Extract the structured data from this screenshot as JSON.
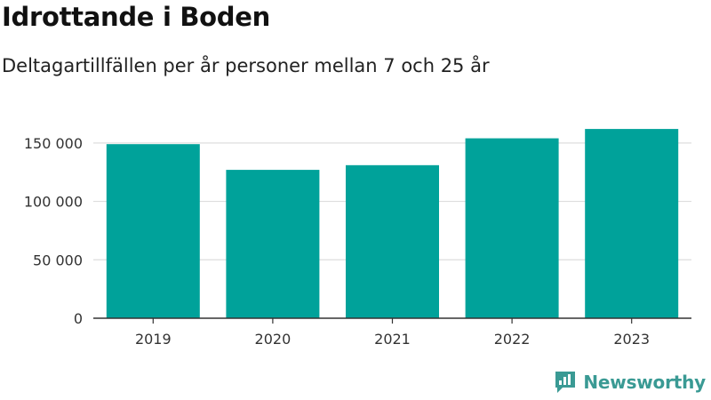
{
  "header": {
    "title": "Idrottande i Boden",
    "subtitle": "Deltagartillfällen per år personer mellan 7 och 25 år"
  },
  "brand": {
    "name": "Newsworthy",
    "color": "#3a9a94",
    "icon": "newsworthy-logo-icon"
  },
  "colors": {
    "bar": "#00a29a",
    "grid": "#dddddd",
    "axis": "#333333"
  },
  "chart_data": {
    "type": "bar",
    "categories": [
      "2019",
      "2020",
      "2021",
      "2022",
      "2023"
    ],
    "values": [
      149000,
      127000,
      131000,
      154000,
      162000
    ],
    "title": "Idrottande i Boden",
    "subtitle": "Deltagartillfällen per år personer mellan 7 och 25 år",
    "xlabel": "",
    "ylabel": "",
    "ylim": [
      0,
      175000
    ],
    "yticks": [
      0,
      50000,
      100000,
      150000
    ],
    "ytick_labels": [
      "0",
      "50 000",
      "100 000",
      "150 000"
    ],
    "grid": true,
    "legend": "none"
  }
}
